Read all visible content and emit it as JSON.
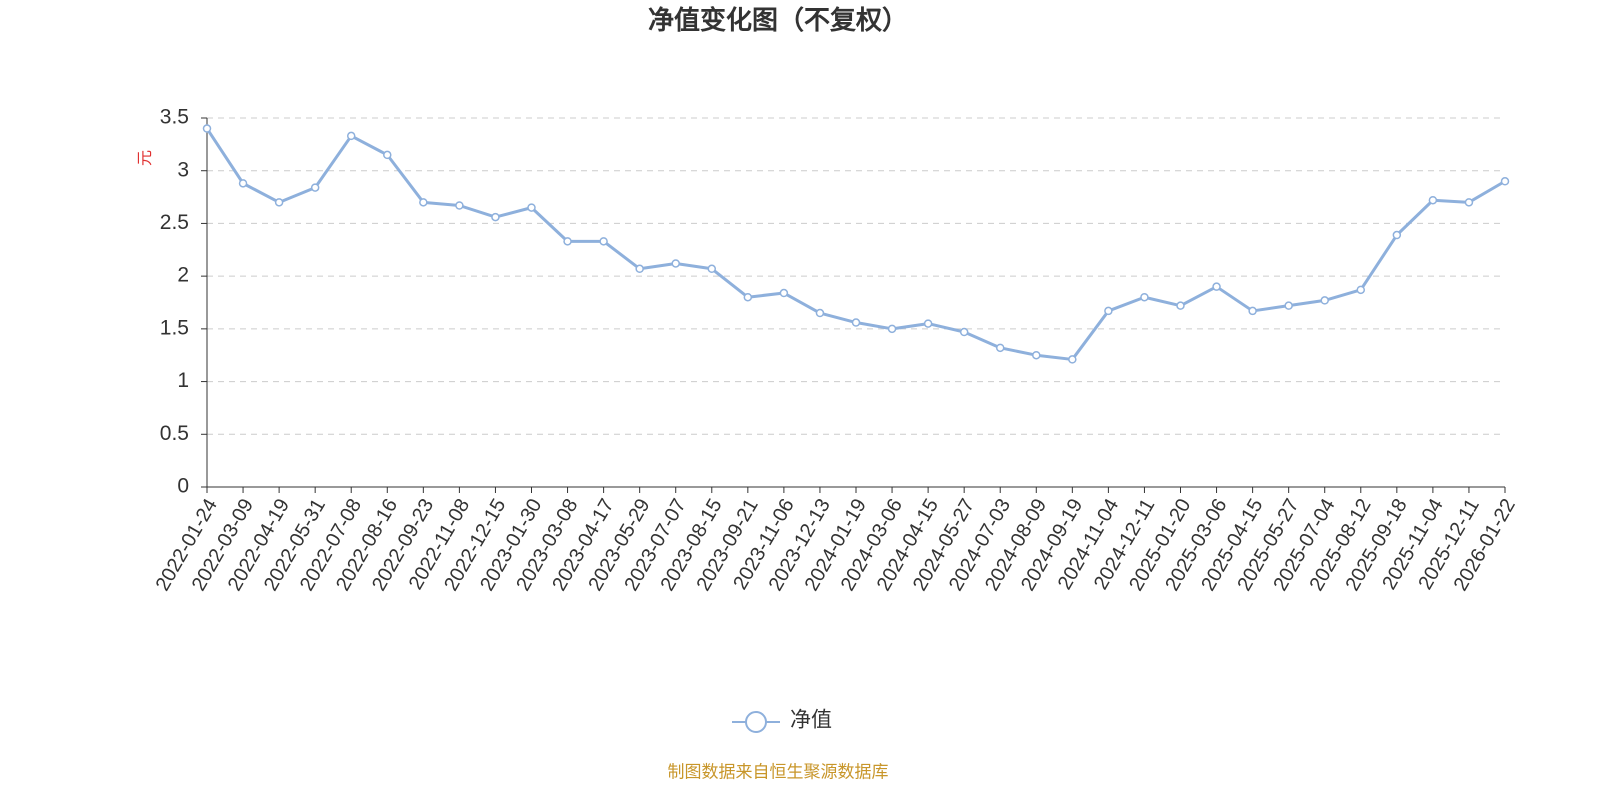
{
  "chart_data": {
    "type": "line",
    "title": "净值变化图（不复权）",
    "y_label": "元",
    "categories": [
      "2022-01-24",
      "2022-03-09",
      "2022-04-19",
      "2022-05-31",
      "2022-07-08",
      "2022-08-16",
      "2022-09-23",
      "2022-11-08",
      "2022-12-15",
      "2023-01-30",
      "2023-03-08",
      "2023-04-17",
      "2023-05-29",
      "2023-07-07",
      "2023-08-15",
      "2023-09-21",
      "2023-11-06",
      "2023-12-13",
      "2024-01-19",
      "2024-03-06",
      "2024-04-15",
      "2024-05-27",
      "2024-07-03",
      "2024-08-09",
      "2024-09-19",
      "2024-11-04",
      "2024-12-11",
      "2025-01-20",
      "2025-03-06",
      "2025-04-15",
      "2025-05-27",
      "2025-07-04",
      "2025-08-12",
      "2025-09-18",
      "2025-11-04",
      "2025-12-11",
      "2026-01-22"
    ],
    "series": [
      {
        "name": "净值",
        "color": "#8eb0dc",
        "values": [
          3.4,
          2.88,
          2.7,
          2.84,
          3.33,
          3.15,
          2.7,
          2.67,
          2.56,
          2.65,
          2.33,
          2.33,
          2.07,
          2.12,
          2.07,
          1.8,
          1.84,
          1.65,
          1.56,
          1.5,
          1.55,
          1.47,
          1.32,
          1.25,
          1.21,
          1.67,
          1.8,
          1.72,
          1.9,
          1.67,
          1.72,
          1.77,
          1.87,
          2.39,
          2.72,
          2.7,
          2.9
        ]
      }
    ],
    "ylim": [
      0,
      3.5
    ],
    "yticks": [
      0,
      0.5,
      1,
      1.5,
      2,
      2.5,
      3,
      3.5
    ],
    "grid": true,
    "source": "制图数据来自恒生聚源数据库"
  }
}
